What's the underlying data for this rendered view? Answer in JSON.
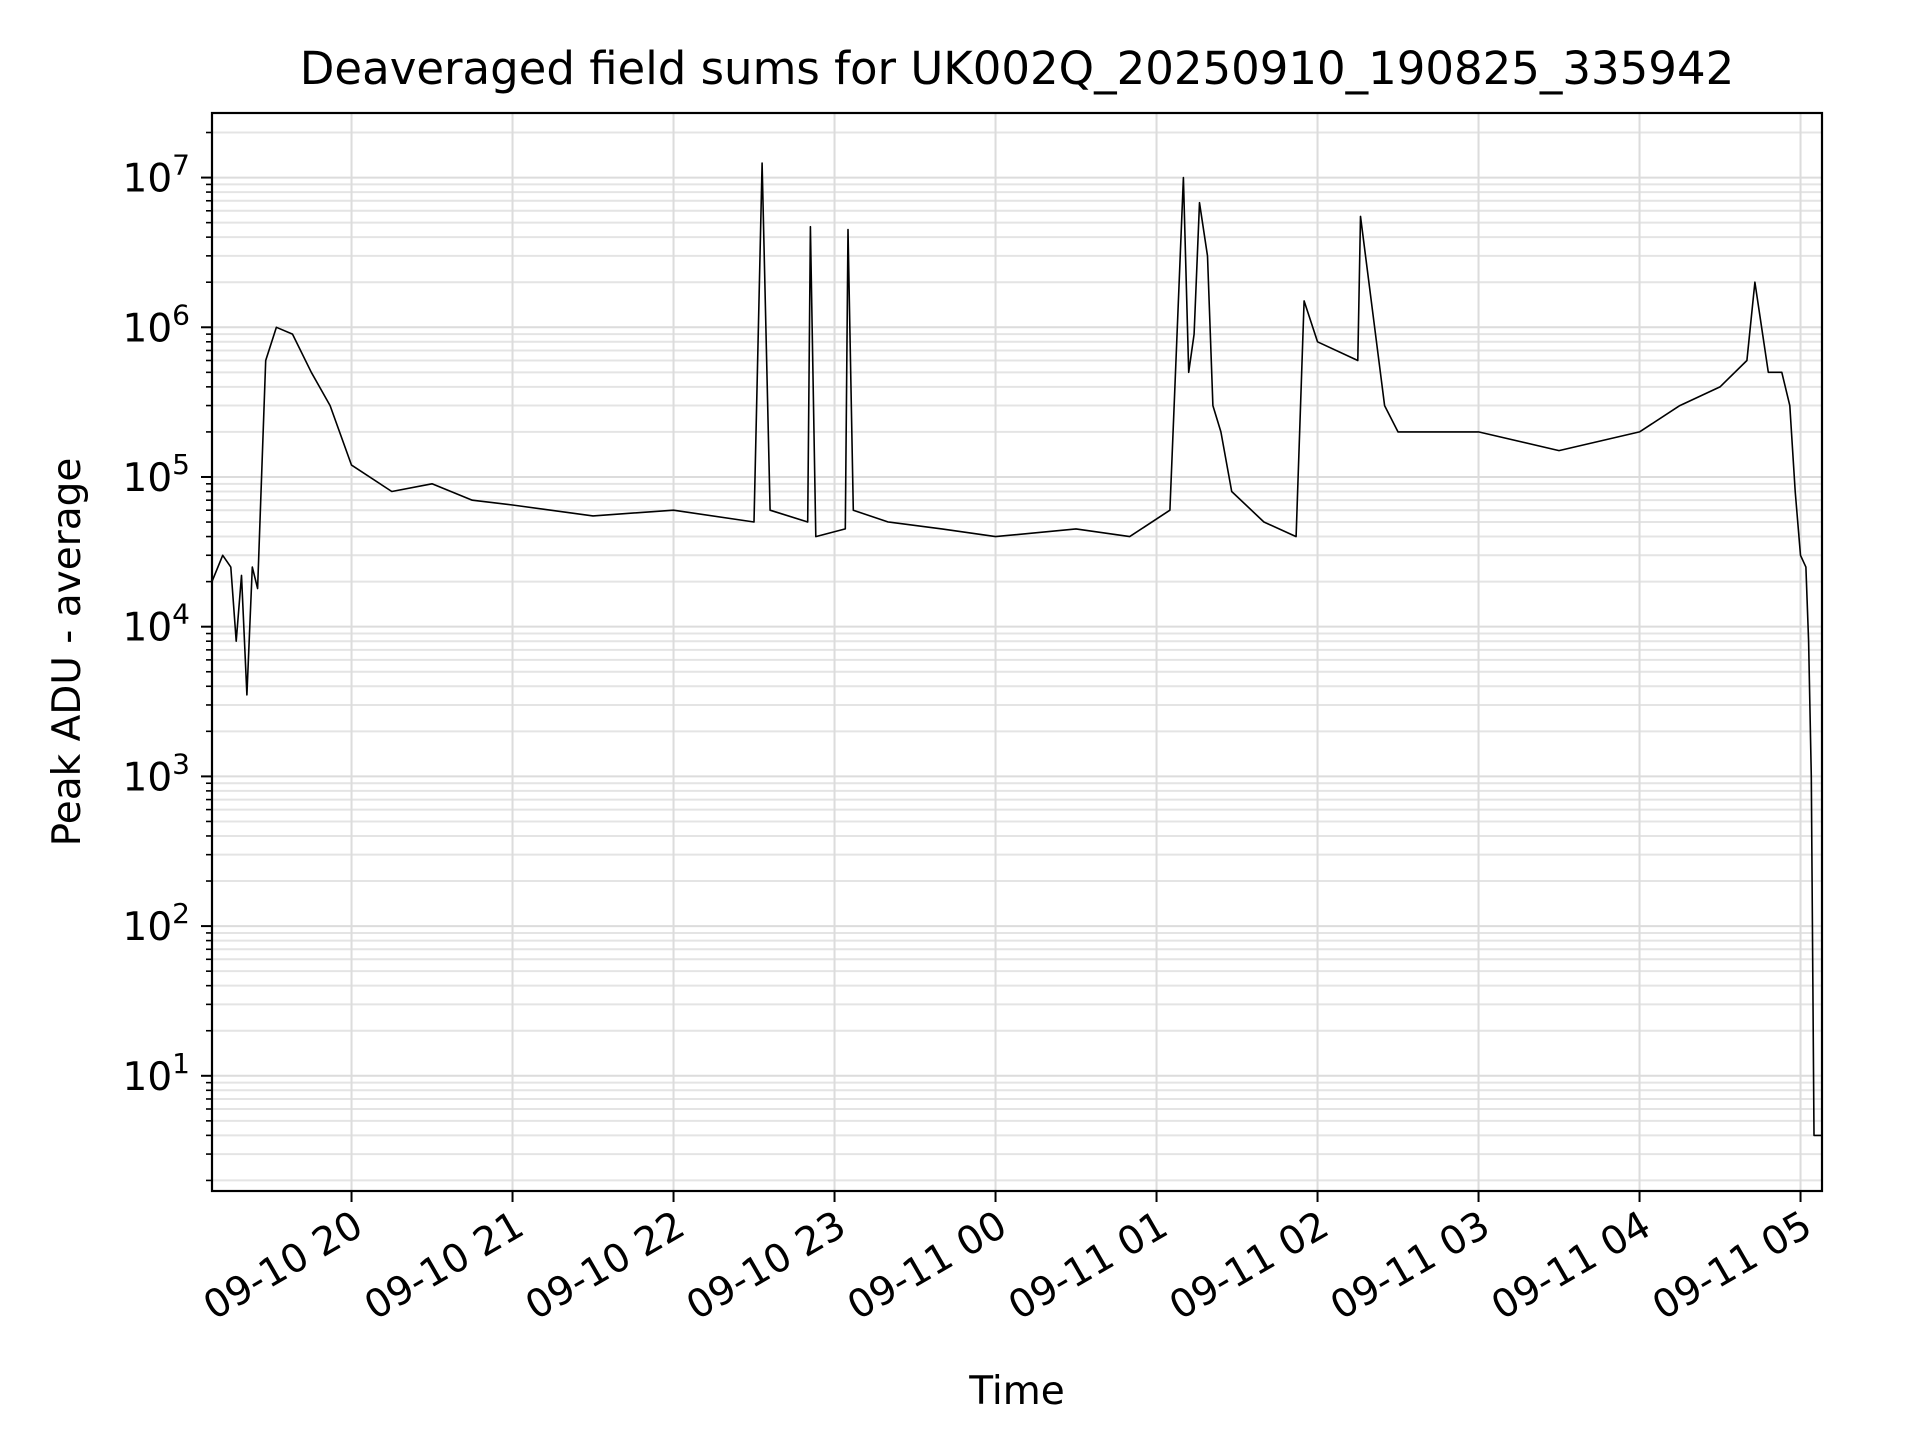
{
  "chart_data": {
    "type": "line",
    "title": "Deaveraged field sums for UK002Q_20250910_190825_335942",
    "xlabel": "Time",
    "ylabel": "Peak ADU - average",
    "yscale": "log",
    "ylim": [
      1.7,
      27000000
    ],
    "xlim": [
      "2025-09-10 19:08",
      "2025-09-11 05:08"
    ],
    "grid": "on (major and minor)",
    "line_color": "#000000",
    "x_ticks": [
      "09-10 20",
      "09-10 21",
      "09-10 22",
      "09-10 23",
      "09-11 00",
      "09-11 01",
      "09-11 02",
      "09-11 03",
      "09-11 04",
      "09-11 05"
    ],
    "y_ticks": [
      {
        "value": 10,
        "base": "10",
        "exp": "1"
      },
      {
        "value": 100,
        "base": "10",
        "exp": "2"
      },
      {
        "value": 1000,
        "base": "10",
        "exp": "3"
      },
      {
        "value": 10000,
        "base": "10",
        "exp": "4"
      },
      {
        "value": 100000,
        "base": "10",
        "exp": "5"
      },
      {
        "value": 1000000,
        "base": "10",
        "exp": "6"
      },
      {
        "value": 10000000,
        "base": "10",
        "exp": "7"
      }
    ],
    "series": [
      {
        "x": [
          "2025-09-10 19:08",
          "2025-09-10 19:12",
          "2025-09-10 19:15",
          "2025-09-10 19:17",
          "2025-09-10 19:19",
          "2025-09-10 19:21",
          "2025-09-10 19:23",
          "2025-09-10 19:25",
          "2025-09-10 19:28",
          "2025-09-10 19:32",
          "2025-09-10 19:38",
          "2025-09-10 19:45",
          "2025-09-10 19:52",
          "2025-09-10 20:00",
          "2025-09-10 20:15",
          "2025-09-10 20:30",
          "2025-09-10 20:45",
          "2025-09-10 21:00",
          "2025-09-10 21:30",
          "2025-09-10 22:00",
          "2025-09-10 22:30",
          "2025-09-10 22:33",
          "2025-09-10 22:36",
          "2025-09-10 22:50",
          "2025-09-10 22:51",
          "2025-09-10 22:53",
          "2025-09-10 23:04",
          "2025-09-10 23:05",
          "2025-09-10 23:07",
          "2025-09-10 23:20",
          "2025-09-10 23:40",
          "2025-09-11 00:00",
          "2025-09-11 00:30",
          "2025-09-11 00:50",
          "2025-09-11 01:05",
          "2025-09-11 01:10",
          "2025-09-11 01:12",
          "2025-09-11 01:14",
          "2025-09-11 01:16",
          "2025-09-11 01:19",
          "2025-09-11 01:21",
          "2025-09-11 01:24",
          "2025-09-11 01:28",
          "2025-09-11 01:40",
          "2025-09-11 01:52",
          "2025-09-11 01:55",
          "2025-09-11 02:00",
          "2025-09-11 02:15",
          "2025-09-11 02:16",
          "2025-09-11 02:25",
          "2025-09-11 02:30",
          "2025-09-11 03:00",
          "2025-09-11 03:30",
          "2025-09-11 04:00",
          "2025-09-11 04:15",
          "2025-09-11 04:30",
          "2025-09-11 04:40",
          "2025-09-11 04:43",
          "2025-09-11 04:48",
          "2025-09-11 04:53",
          "2025-09-11 04:56",
          "2025-09-11 04:58",
          "2025-09-11 05:00",
          "2025-09-11 05:02",
          "2025-09-11 05:03",
          "2025-09-11 05:04",
          "2025-09-11 05:05",
          "2025-09-11 05:07",
          "2025-09-11 05:08"
        ],
        "y": [
          20000,
          30000,
          25000,
          8000,
          22000,
          3500,
          25000,
          18000,
          600000,
          1000000,
          900000,
          500000,
          300000,
          120000,
          80000,
          90000,
          70000,
          65000,
          55000,
          60000,
          50000,
          12500000,
          60000,
          50000,
          4700000,
          40000,
          45000,
          4500000,
          60000,
          50000,
          45000,
          40000,
          45000,
          40000,
          60000,
          10000000,
          500000,
          900000,
          6800000,
          3000000,
          300000,
          200000,
          80000,
          50000,
          40000,
          1500000,
          800000,
          600000,
          5500000,
          300000,
          200000,
          200000,
          150000,
          200000,
          300000,
          400000,
          600000,
          2000000,
          500000,
          500000,
          300000,
          80000,
          30000,
          25000,
          8000,
          1000,
          4,
          4,
          4
        ]
      }
    ]
  }
}
